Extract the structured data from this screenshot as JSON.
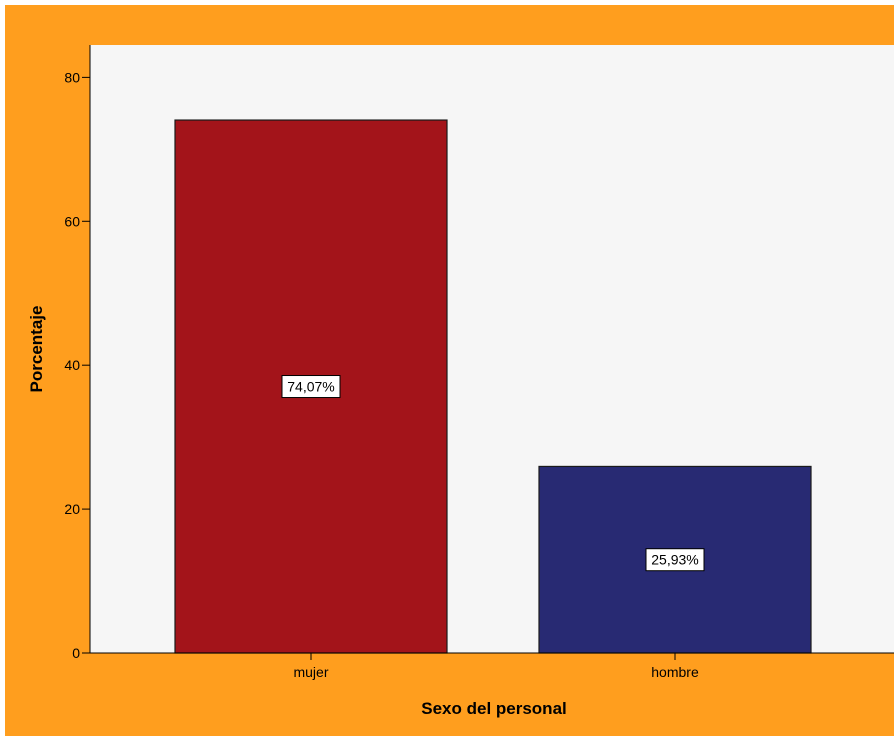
{
  "chart_data": {
    "type": "bar",
    "categories": [
      "mujer",
      "hombre"
    ],
    "values": [
      74.07,
      25.93
    ],
    "data_labels": [
      "74,07%",
      "25,93%"
    ],
    "bar_colors": [
      "#A3141A",
      "#282A73"
    ],
    "xlabel": "Sexo del personal",
    "ylabel": "Porcentaje",
    "ylim": [
      0,
      84.5
    ],
    "yticks": [
      0,
      20,
      40,
      60,
      80
    ],
    "grid": false,
    "legend": "none"
  },
  "colors": {
    "outer_background": "#FF9E1E",
    "plot_background": "#F6F6F6",
    "axis": "#000000"
  }
}
